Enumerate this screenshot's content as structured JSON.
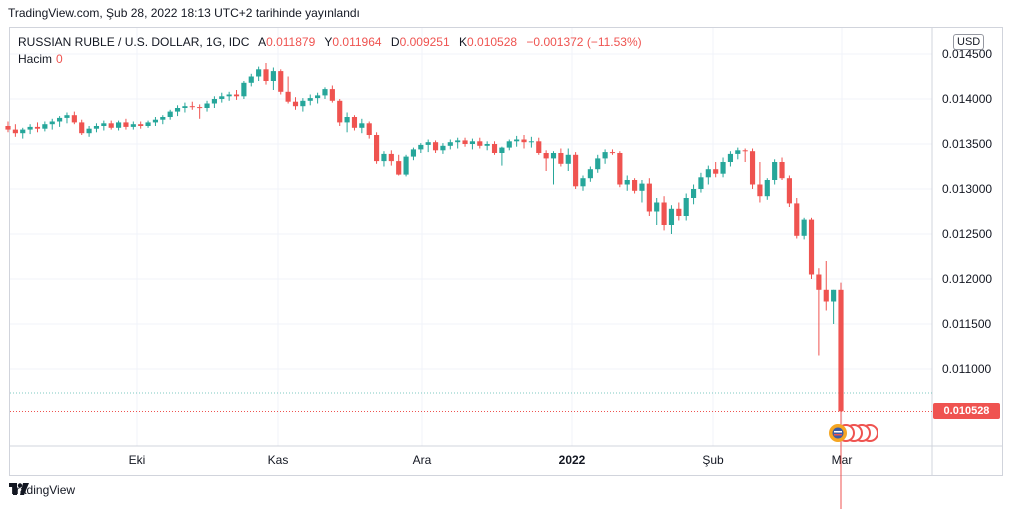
{
  "header": {
    "published_text": "TradingView.com, Şub 28, 2022 18:13 UTC+2 tarihinde yayınlandı"
  },
  "legend": {
    "symbol": "RUSSIAN RUBLE / U.S. DOLLAR, 1G, IDC",
    "open_label": "A",
    "open_value": "0.011879",
    "high_label": "Y",
    "high_value": "0.011964",
    "low_label": "D",
    "low_value": "0.009251",
    "close_label": "K",
    "close_value": "0.010528",
    "change": "−0.001372 (−11.53%)",
    "volume_label": "Hacim",
    "volume_value": "0"
  },
  "currency_button": "USD",
  "last_price_tag": "0.010528",
  "footer": {
    "brand": "TradingView"
  },
  "colors": {
    "up": "#26a69a",
    "down": "#ef5350",
    "grid": "#f0f3fa",
    "text": "#131722"
  },
  "chart_data": {
    "type": "candlestick",
    "y_ticks": [
      "0.014500",
      "0.014000",
      "0.013500",
      "0.013000",
      "0.012500",
      "0.012000",
      "0.011500",
      "0.011000"
    ],
    "y_tick_values": [
      0.0145,
      0.014,
      0.0135,
      0.013,
      0.0125,
      0.012,
      0.0115,
      0.011
    ],
    "x_ticks": [
      "Eki",
      "Kas",
      "Ara",
      "2022",
      "Şub",
      "Mar"
    ],
    "ylim": [
      0.00983,
      0.01469
    ],
    "last_price": 0.010528,
    "candles": [
      [
        0.0137,
        0.01375,
        0.01363,
        0.01366
      ],
      [
        0.01366,
        0.01372,
        0.01358,
        0.01362
      ],
      [
        0.01362,
        0.01368,
        0.01356,
        0.01366
      ],
      [
        0.01366,
        0.01372,
        0.01361,
        0.01369
      ],
      [
        0.01369,
        0.01374,
        0.01363,
        0.01367
      ],
      [
        0.01367,
        0.01375,
        0.01364,
        0.01372
      ],
      [
        0.01372,
        0.01378,
        0.01366,
        0.01375
      ],
      [
        0.01375,
        0.01381,
        0.01369,
        0.01379
      ],
      [
        0.01379,
        0.01385,
        0.01373,
        0.01382
      ],
      [
        0.01382,
        0.01386,
        0.01372,
        0.01374
      ],
      [
        0.01374,
        0.01377,
        0.0136,
        0.01362
      ],
      [
        0.01362,
        0.0137,
        0.01358,
        0.01367
      ],
      [
        0.01367,
        0.01373,
        0.01363,
        0.0137
      ],
      [
        0.0137,
        0.01376,
        0.01365,
        0.01373
      ],
      [
        0.01373,
        0.01376,
        0.01366,
        0.01368
      ],
      [
        0.01368,
        0.01376,
        0.01365,
        0.01374
      ],
      [
        0.01374,
        0.01378,
        0.01366,
        0.01369
      ],
      [
        0.01369,
        0.01375,
        0.01366,
        0.01372
      ],
      [
        0.01372,
        0.01375,
        0.01367,
        0.0137
      ],
      [
        0.0137,
        0.01376,
        0.01368,
        0.01374
      ],
      [
        0.01374,
        0.0138,
        0.0137,
        0.01377
      ],
      [
        0.01377,
        0.01382,
        0.01372,
        0.0138
      ],
      [
        0.0138,
        0.01388,
        0.01377,
        0.01386
      ],
      [
        0.01386,
        0.01393,
        0.01381,
        0.0139
      ],
      [
        0.0139,
        0.01396,
        0.01385,
        0.01392
      ],
      [
        0.01392,
        0.01397,
        0.01388,
        0.01391
      ],
      [
        0.01391,
        0.01394,
        0.01378,
        0.0139
      ],
      [
        0.0139,
        0.01398,
        0.01386,
        0.01395
      ],
      [
        0.01395,
        0.01403,
        0.0139,
        0.014
      ],
      [
        0.014,
        0.01407,
        0.01396,
        0.01403
      ],
      [
        0.01403,
        0.01408,
        0.01398,
        0.01405
      ],
      [
        0.01405,
        0.0141,
        0.01399,
        0.01403
      ],
      [
        0.01403,
        0.0142,
        0.014,
        0.01418
      ],
      [
        0.01418,
        0.01428,
        0.01414,
        0.01425
      ],
      [
        0.01425,
        0.01436,
        0.0142,
        0.01433
      ],
      [
        0.01433,
        0.0144,
        0.01416,
        0.0142
      ],
      [
        0.0142,
        0.01435,
        0.0141,
        0.01431
      ],
      [
        0.01431,
        0.01433,
        0.01405,
        0.01408
      ],
      [
        0.01408,
        0.01425,
        0.01395,
        0.01397
      ],
      [
        0.01397,
        0.01402,
        0.01388,
        0.01392
      ],
      [
        0.01392,
        0.01401,
        0.01386,
        0.01398
      ],
      [
        0.01398,
        0.01405,
        0.01393,
        0.01401
      ],
      [
        0.01401,
        0.01407,
        0.01395,
        0.01404
      ],
      [
        0.01404,
        0.01413,
        0.014,
        0.01411
      ],
      [
        0.01411,
        0.01415,
        0.01396,
        0.01398
      ],
      [
        0.01398,
        0.014,
        0.0137,
        0.01374
      ],
      [
        0.01374,
        0.01385,
        0.01363,
        0.0138
      ],
      [
        0.0138,
        0.01382,
        0.01365,
        0.01368
      ],
      [
        0.01368,
        0.01378,
        0.01362,
        0.01373
      ],
      [
        0.01373,
        0.01375,
        0.01356,
        0.0136
      ],
      [
        0.0136,
        0.01363,
        0.01328,
        0.01331
      ],
      [
        0.01331,
        0.01342,
        0.01325,
        0.01339
      ],
      [
        0.01339,
        0.01343,
        0.01326,
        0.01331
      ],
      [
        0.01331,
        0.01338,
        0.01315,
        0.01316
      ],
      [
        0.01316,
        0.01338,
        0.01314,
        0.01336
      ],
      [
        0.01336,
        0.01346,
        0.01332,
        0.01344
      ],
      [
        0.01344,
        0.01351,
        0.0134,
        0.01349
      ],
      [
        0.01349,
        0.01355,
        0.01341,
        0.01352
      ],
      [
        0.01352,
        0.01354,
        0.0134,
        0.01343
      ],
      [
        0.01343,
        0.01351,
        0.01339,
        0.01348
      ],
      [
        0.01348,
        0.01355,
        0.01344,
        0.01352
      ],
      [
        0.01352,
        0.01357,
        0.01345,
        0.01354
      ],
      [
        0.01354,
        0.01357,
        0.01347,
        0.0135
      ],
      [
        0.0135,
        0.01356,
        0.01344,
        0.01353
      ],
      [
        0.01353,
        0.01357,
        0.01345,
        0.01348
      ],
      [
        0.01348,
        0.01353,
        0.01343,
        0.0135
      ],
      [
        0.0135,
        0.01353,
        0.01338,
        0.0134
      ],
      [
        0.0134,
        0.01347,
        0.01326,
        0.01346
      ],
      [
        0.01346,
        0.01355,
        0.01343,
        0.01353
      ],
      [
        0.01353,
        0.01359,
        0.01347,
        0.01355
      ],
      [
        0.01355,
        0.0136,
        0.01345,
        0.01352
      ],
      [
        0.01352,
        0.01358,
        0.01346,
        0.01353
      ],
      [
        0.01353,
        0.01357,
        0.01338,
        0.0134
      ],
      [
        0.0134,
        0.01343,
        0.0132,
        0.01334
      ],
      [
        0.01334,
        0.01342,
        0.01305,
        0.0134
      ],
      [
        0.0134,
        0.01345,
        0.01325,
        0.01328
      ],
      [
        0.01328,
        0.01345,
        0.0132,
        0.01338
      ],
      [
        0.01338,
        0.01341,
        0.013,
        0.01303
      ],
      [
        0.01303,
        0.01315,
        0.01298,
        0.01312
      ],
      [
        0.01312,
        0.01325,
        0.01308,
        0.01322
      ],
      [
        0.01322,
        0.01338,
        0.01318,
        0.01334
      ],
      [
        0.01334,
        0.01344,
        0.01328,
        0.01341
      ],
      [
        0.01341,
        0.01344,
        0.01338,
        0.0134
      ],
      [
        0.0134,
        0.01342,
        0.01302,
        0.01305
      ],
      [
        0.01305,
        0.01315,
        0.01298,
        0.0131
      ],
      [
        0.0131,
        0.01312,
        0.01295,
        0.01298
      ],
      [
        0.01298,
        0.0131,
        0.01285,
        0.01306
      ],
      [
        0.01306,
        0.01312,
        0.0127,
        0.01275
      ],
      [
        0.01275,
        0.0129,
        0.0126,
        0.01285
      ],
      [
        0.01285,
        0.01292,
        0.01254,
        0.0126
      ],
      [
        0.0126,
        0.01282,
        0.0125,
        0.01278
      ],
      [
        0.01278,
        0.01285,
        0.01265,
        0.0127
      ],
      [
        0.0127,
        0.01295,
        0.01265,
        0.0129
      ],
      [
        0.0129,
        0.01305,
        0.01283,
        0.013
      ],
      [
        0.013,
        0.01318,
        0.01296,
        0.01313
      ],
      [
        0.01313,
        0.01326,
        0.01305,
        0.01322
      ],
      [
        0.01322,
        0.0133,
        0.01313,
        0.01317
      ],
      [
        0.01317,
        0.01335,
        0.01313,
        0.0133
      ],
      [
        0.0133,
        0.01342,
        0.01325,
        0.01339
      ],
      [
        0.01339,
        0.01346,
        0.01333,
        0.01343
      ],
      [
        0.01343,
        0.01345,
        0.0133,
        0.01342
      ],
      [
        0.01342,
        0.01345,
        0.013,
        0.01305
      ],
      [
        0.01305,
        0.0133,
        0.01285,
        0.01292
      ],
      [
        0.01292,
        0.01312,
        0.01288,
        0.0131
      ],
      [
        0.0131,
        0.01333,
        0.01305,
        0.0133
      ],
      [
        0.0133,
        0.01335,
        0.0131,
        0.01312
      ],
      [
        0.01312,
        0.01315,
        0.0128,
        0.01284
      ],
      [
        0.01284,
        0.0129,
        0.01245,
        0.01248
      ],
      [
        0.01248,
        0.01268,
        0.01244,
        0.01266
      ],
      [
        0.01266,
        0.01268,
        0.012,
        0.01205
      ],
      [
        0.01205,
        0.01212,
        0.01115,
        0.01188
      ],
      [
        0.01188,
        0.0122,
        0.01165,
        0.01175
      ],
      [
        0.01175,
        0.01188,
        0.0115,
        0.01188
      ],
      [
        0.01188,
        0.01196,
        0.00925,
        0.01053
      ]
    ]
  }
}
